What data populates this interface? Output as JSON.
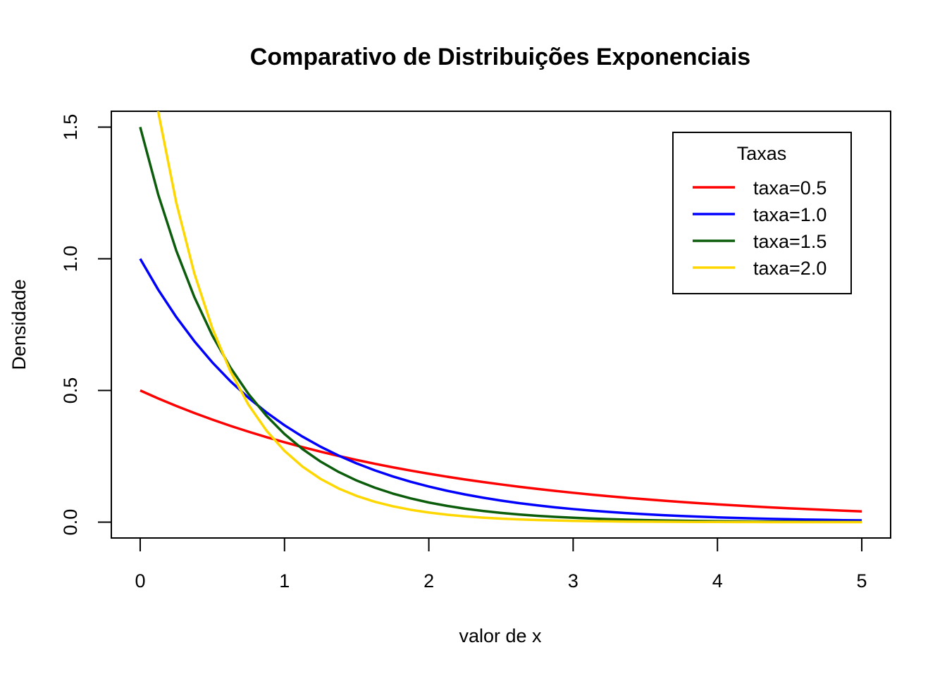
{
  "chart_data": {
    "type": "line",
    "title": "Comparativo de Distribuições Exponenciais",
    "xlabel": "valor de x",
    "ylabel": "Densidade",
    "xlim": [
      -0.2,
      5.2
    ],
    "ylim": [
      -0.06,
      1.56
    ],
    "x_ticks": [
      "0",
      "1",
      "2",
      "3",
      "4",
      "5"
    ],
    "y_ticks": [
      "0.0",
      "0.5",
      "1.0",
      "1.5"
    ],
    "grid": false,
    "legend": {
      "title": "Taxas",
      "position": "top-right"
    },
    "x": [
      0,
      0.125,
      0.25,
      0.375,
      0.5,
      0.625,
      0.75,
      0.875,
      1,
      1.125,
      1.25,
      1.375,
      1.5,
      1.625,
      1.75,
      1.875,
      2,
      2.125,
      2.25,
      2.375,
      2.5,
      2.625,
      2.75,
      2.875,
      3,
      3.125,
      3.25,
      3.375,
      3.5,
      3.625,
      3.75,
      3.875,
      4,
      4.125,
      4.25,
      4.375,
      4.5,
      4.625,
      4.75,
      4.875,
      5
    ],
    "series": [
      {
        "name": "taxa=0.5",
        "color": "#ff0000",
        "values": [
          0.5,
          0.4697,
          0.4412,
          0.4145,
          0.3894,
          0.3658,
          0.3436,
          0.3228,
          0.3033,
          0.2849,
          0.2676,
          0.2514,
          0.2362,
          0.2219,
          0.2084,
          0.1958,
          0.1839,
          0.1728,
          0.1623,
          0.1525,
          0.1433,
          0.1346,
          0.1264,
          0.1188,
          0.1116,
          0.1048,
          0.0985,
          0.0925,
          0.0869,
          0.0816,
          0.0767,
          0.072,
          0.0677,
          0.0636,
          0.0597,
          0.0561,
          0.0527,
          0.0495,
          0.0465,
          0.0437,
          0.041
        ]
      },
      {
        "name": "taxa=1.0",
        "color": "#0000ff",
        "values": [
          1.0,
          0.8825,
          0.7788,
          0.6873,
          0.6065,
          0.5353,
          0.4724,
          0.4169,
          0.3679,
          0.3247,
          0.2865,
          0.2528,
          0.2231,
          0.1969,
          0.1738,
          0.1534,
          0.1353,
          0.1194,
          0.1054,
          0.093,
          0.0821,
          0.0724,
          0.0639,
          0.0564,
          0.0498,
          0.0439,
          0.0388,
          0.0342,
          0.0302,
          0.0266,
          0.0235,
          0.0208,
          0.0183,
          0.0162,
          0.0143,
          0.0126,
          0.0111,
          0.0098,
          0.0087,
          0.0076,
          0.0067
        ]
      },
      {
        "name": "taxa=1.5",
        "color": "#0b5c0b",
        "values": [
          1.5,
          1.2436,
          1.031,
          0.8548,
          0.7085,
          0.5873,
          0.487,
          0.4037,
          0.3347,
          0.2775,
          0.23,
          0.1907,
          0.1581,
          0.1311,
          0.1087,
          0.0901,
          0.0747,
          0.0619,
          0.0513,
          0.0426,
          0.0353,
          0.0293,
          0.0243,
          0.0201,
          0.0167,
          0.0138,
          0.0115,
          0.0095,
          0.0079,
          0.0065,
          0.0054,
          0.0045,
          0.0037,
          0.0031,
          0.0026,
          0.0021,
          0.0018,
          0.0015,
          0.0012,
          0.001,
          0.0008
        ]
      },
      {
        "name": "taxa=2.0",
        "color": "#ffd700",
        "values": [
          2.0,
          1.5576,
          1.2131,
          0.9447,
          0.7358,
          0.573,
          0.4463,
          0.3476,
          0.2707,
          0.2108,
          0.1642,
          0.1279,
          0.0996,
          0.0776,
          0.0604,
          0.047,
          0.0366,
          0.0285,
          0.0222,
          0.0173,
          0.0135,
          0.0105,
          0.0082,
          0.0064,
          0.005,
          0.0039,
          0.003,
          0.0023,
          0.0018,
          0.0014,
          0.0011,
          0.0009,
          0.0007,
          0.0005,
          0.0004,
          0.0003,
          0.0002,
          0.0002,
          0.0002,
          0.0001,
          0.0001
        ]
      }
    ]
  }
}
